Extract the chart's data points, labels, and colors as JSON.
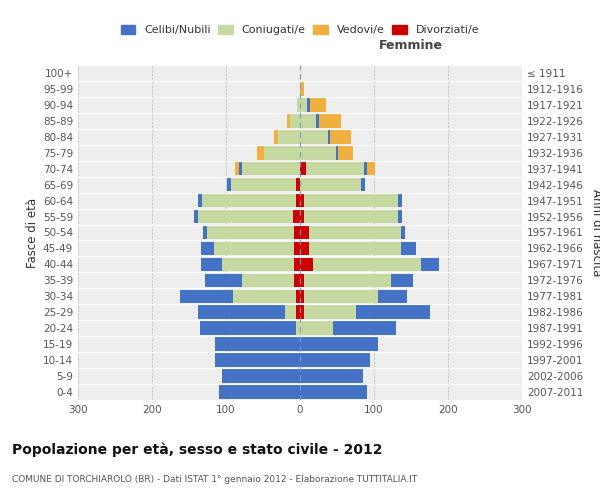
{
  "age_groups": [
    "0-4",
    "5-9",
    "10-14",
    "15-19",
    "20-24",
    "25-29",
    "30-34",
    "35-39",
    "40-44",
    "45-49",
    "50-54",
    "55-59",
    "60-64",
    "65-69",
    "70-74",
    "75-79",
    "80-84",
    "85-89",
    "90-94",
    "95-99",
    "100+"
  ],
  "birth_years": [
    "2007-2011",
    "2002-2006",
    "1997-2001",
    "1992-1996",
    "1987-1991",
    "1982-1986",
    "1977-1981",
    "1972-1976",
    "1967-1971",
    "1962-1966",
    "1957-1961",
    "1952-1956",
    "1947-1951",
    "1942-1946",
    "1937-1941",
    "1932-1936",
    "1927-1931",
    "1922-1926",
    "1917-1921",
    "1912-1916",
    "≤ 1911"
  ],
  "male_celibi": [
    110,
    105,
    115,
    115,
    130,
    118,
    72,
    50,
    28,
    18,
    5,
    5,
    5,
    5,
    5,
    0,
    0,
    0,
    0,
    0,
    0
  ],
  "male_coniugati": [
    0,
    0,
    0,
    0,
    5,
    15,
    85,
    70,
    98,
    108,
    118,
    128,
    128,
    88,
    78,
    48,
    30,
    14,
    4,
    0,
    0
  ],
  "male_vedovi": [
    0,
    0,
    0,
    0,
    0,
    0,
    0,
    0,
    0,
    0,
    0,
    0,
    0,
    0,
    5,
    10,
    5,
    4,
    0,
    0,
    0
  ],
  "male_divorziati": [
    0,
    0,
    0,
    0,
    0,
    5,
    5,
    8,
    8,
    8,
    8,
    10,
    5,
    5,
    0,
    0,
    0,
    0,
    0,
    0,
    0
  ],
  "female_nubili": [
    90,
    85,
    95,
    105,
    85,
    100,
    40,
    30,
    25,
    20,
    5,
    5,
    5,
    5,
    5,
    3,
    3,
    3,
    3,
    0,
    0
  ],
  "female_coniugate": [
    0,
    0,
    0,
    0,
    45,
    70,
    100,
    118,
    145,
    125,
    125,
    128,
    128,
    83,
    78,
    48,
    38,
    22,
    10,
    0,
    0
  ],
  "female_vedove": [
    0,
    0,
    0,
    0,
    0,
    0,
    0,
    0,
    0,
    0,
    0,
    0,
    0,
    0,
    10,
    20,
    28,
    30,
    22,
    5,
    0
  ],
  "female_divorziate": [
    0,
    0,
    0,
    0,
    0,
    5,
    5,
    5,
    18,
    12,
    12,
    5,
    5,
    0,
    8,
    0,
    0,
    0,
    0,
    0,
    0
  ],
  "col_celibi": "#4472c4",
  "col_coniugati": "#c5d9a0",
  "col_vedovi": "#f0b040",
  "col_divorziati": "#cc0000",
  "bg_color": "#eeeeee",
  "title": "Popolazione per età, sesso e stato civile - 2012",
  "subtitle": "COMUNE DI TORCHIAROLO (BR) - Dati ISTAT 1° gennaio 2012 - Elaborazione TUTTITALIA.IT",
  "ylabel_left": "Fasce di età",
  "ylabel_right": "Anni di nascita",
  "xlabel_right": "Femmine"
}
